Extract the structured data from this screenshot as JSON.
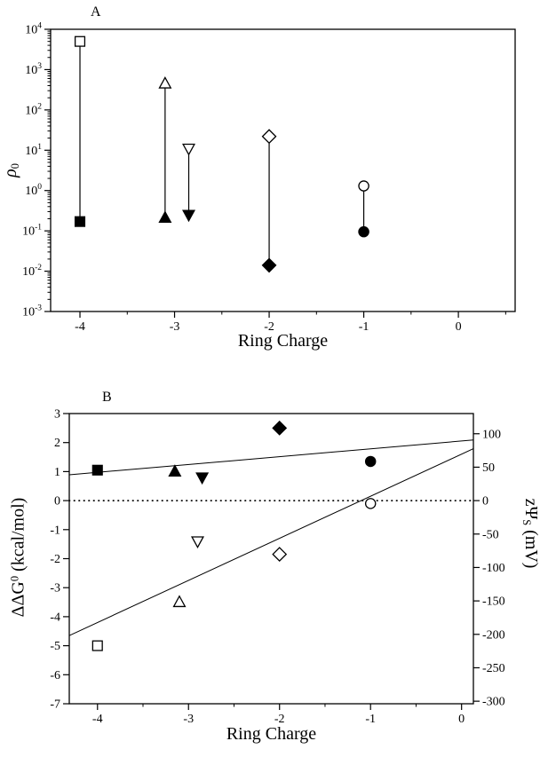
{
  "colors": {
    "foreground": "#000000",
    "background": "#ffffff"
  },
  "panel_a": {
    "panel_letter": "A",
    "xlabel": "Ring Charge",
    "ylabel": {
      "symbol": "ρ",
      "sub": "0"
    }
  },
  "panel_b": {
    "panel_letter": "B",
    "xlabel": "Ring Charge",
    "ylabel_left": {
      "main": "ΔΔG",
      "sup": "0",
      "rest": " (kcal/mol)"
    },
    "ylabel_right": {
      "main": "zΨ",
      "sub": "S",
      "rest": " (mV)"
    }
  },
  "chart_data": [
    {
      "id": "panel-A",
      "type": "scatter",
      "title": "A",
      "xlabel": "Ring Charge",
      "ylabel": "rho_0 (log scale)",
      "x_range": [
        -4.31,
        0.6
      ],
      "x_ticks": [
        -4,
        -3,
        -2,
        -1,
        0
      ],
      "x_minor_ticks": [
        -3.5,
        -2.5,
        -1.5,
        -0.5,
        0.5
      ],
      "y_scale": "log",
      "y_exp_range": [
        -3,
        4
      ],
      "y_tick_exponents": [
        4,
        3,
        2,
        1,
        0,
        -1,
        -2,
        -3
      ],
      "series_pairs": [
        {
          "marker": "square",
          "x": -4.0,
          "open_y": 5000,
          "filled_y": 0.17
        },
        {
          "marker": "triangle-up",
          "x": -3.1,
          "open_y": 450,
          "filled_y": 0.21
        },
        {
          "marker": "triangle-down",
          "x": -2.85,
          "open_y": 11,
          "filled_y": 0.25
        },
        {
          "marker": "diamond",
          "x": -2.0,
          "open_y": 22,
          "filled_y": 0.014
        },
        {
          "marker": "circle",
          "x": -1.0,
          "open_y": 1.3,
          "filled_y": 0.095
        }
      ]
    },
    {
      "id": "panel-B",
      "type": "scatter",
      "title": "B",
      "xlabel": "Ring Charge",
      "ylabel_left": "Delta-Delta-G0 (kcal/mol)",
      "ylabel_right": "z-Psi-S (mV)",
      "x_range": [
        -4.31,
        0.13
      ],
      "x_ticks": [
        -4,
        -3,
        -2,
        -1,
        0
      ],
      "x_minor_ticks": [
        -3.5,
        -2.5,
        -1.5,
        -0.5
      ],
      "y_range": [
        -7,
        3
      ],
      "y_ticks": [
        3,
        2,
        1,
        0,
        -1,
        -2,
        -3,
        -4,
        -5,
        -6,
        -7
      ],
      "right_axis_ticks_mV": [
        100,
        50,
        0,
        -50,
        -100,
        -150,
        -200,
        -250,
        -300
      ],
      "mv_per_kcal": 43.4,
      "points": [
        {
          "marker": "square",
          "fill": "filled",
          "x": -4.0,
          "y": 1.05
        },
        {
          "marker": "square",
          "fill": "open",
          "x": -4.0,
          "y": -5.0
        },
        {
          "marker": "triangle-up",
          "fill": "filled",
          "x": -3.15,
          "y": 1.0
        },
        {
          "marker": "triangle-up",
          "fill": "open",
          "x": -3.1,
          "y": -3.5
        },
        {
          "marker": "triangle-down",
          "fill": "filled",
          "x": -2.85,
          "y": 0.8
        },
        {
          "marker": "triangle-down",
          "fill": "open",
          "x": -2.9,
          "y": -1.4
        },
        {
          "marker": "diamond",
          "fill": "filled",
          "x": -2.0,
          "y": 2.5
        },
        {
          "marker": "diamond",
          "fill": "open",
          "x": -2.0,
          "y": -1.85
        },
        {
          "marker": "circle",
          "fill": "filled",
          "x": -1.0,
          "y": 1.35
        },
        {
          "marker": "circle",
          "fill": "open",
          "x": -1.0,
          "y": -0.1
        }
      ],
      "fit_lines": [
        {
          "name": "filled-symbols-fit",
          "x1": -4.31,
          "y1": 0.89,
          "x2": 0.13,
          "y2": 2.09
        },
        {
          "name": "open-symbols-fit",
          "x1": -4.31,
          "y1": -4.65,
          "x2": 0.13,
          "y2": 1.79
        }
      ],
      "zero_line_y": 0
    }
  ]
}
